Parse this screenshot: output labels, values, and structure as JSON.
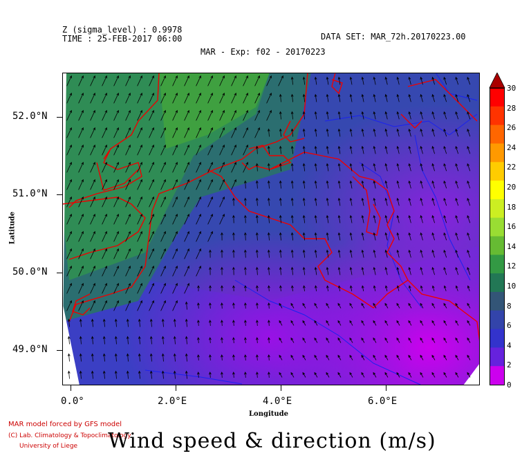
{
  "header": {
    "z_line": "Z (sigma_level) : 0.9978",
    "time_line": "TIME : 25-FEB-2017 06:00",
    "dataset_line": "DATA SET: MAR_72h.20170223.00",
    "title": "MAR - Exp: f02 - 20170223"
  },
  "axes": {
    "xlabel": "Longitude",
    "ylabel": "Latitude",
    "x_ticks": [
      "0.0°",
      "2.0°E",
      "4.0°E",
      "6.0°E"
    ],
    "y_ticks": [
      "52.0°N",
      "51.0°N",
      "50.0°N",
      "49.0°N"
    ]
  },
  "colorbar": {
    "labels": [
      "30",
      "28",
      "26",
      "24",
      "22",
      "20",
      "18",
      "16",
      "14",
      "12",
      "10",
      "8",
      "6",
      "4",
      "2",
      "0"
    ],
    "colors": [
      "#cc0000",
      "#ff0000",
      "#ff3300",
      "#ff6600",
      "#ff9900",
      "#ffcc00",
      "#ffff00",
      "#ccee22",
      "#99dd33",
      "#66bb33",
      "#339944",
      "#227755",
      "#335577",
      "#3344aa",
      "#3333cc",
      "#6622dd",
      "#cc00ee"
    ]
  },
  "credits": {
    "line1": "MAR model forced by GFS model",
    "line2": "(C) Lab. Climatology & Topoclimatology",
    "line3": "University of Liege"
  },
  "big_title": "Wind speed & direction (m/s)"
}
